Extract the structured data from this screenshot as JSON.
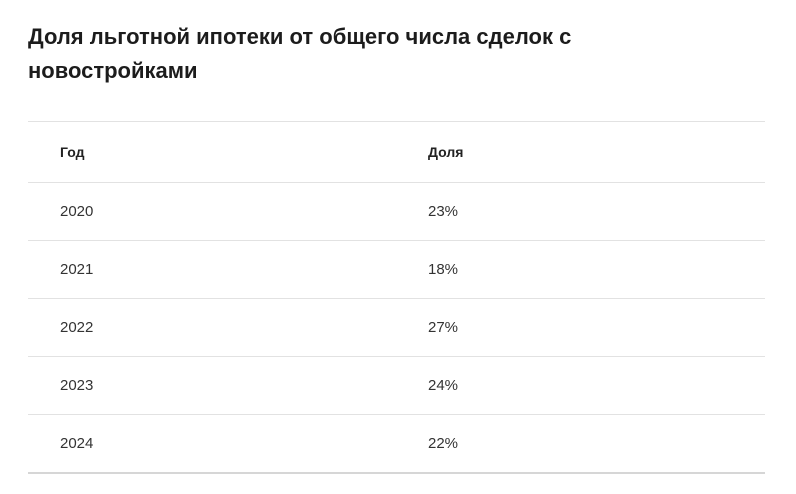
{
  "header": {
    "title": "Доля льготной ипотеки от общего числа сделок с новостройками"
  },
  "table": {
    "columns": [
      "Год",
      "Доля"
    ],
    "rows": [
      [
        "2020",
        "23%"
      ],
      [
        "2021",
        "18%"
      ],
      [
        "2022",
        "27%"
      ],
      [
        "2023",
        "24%"
      ],
      [
        "2024",
        "22%"
      ]
    ]
  }
}
